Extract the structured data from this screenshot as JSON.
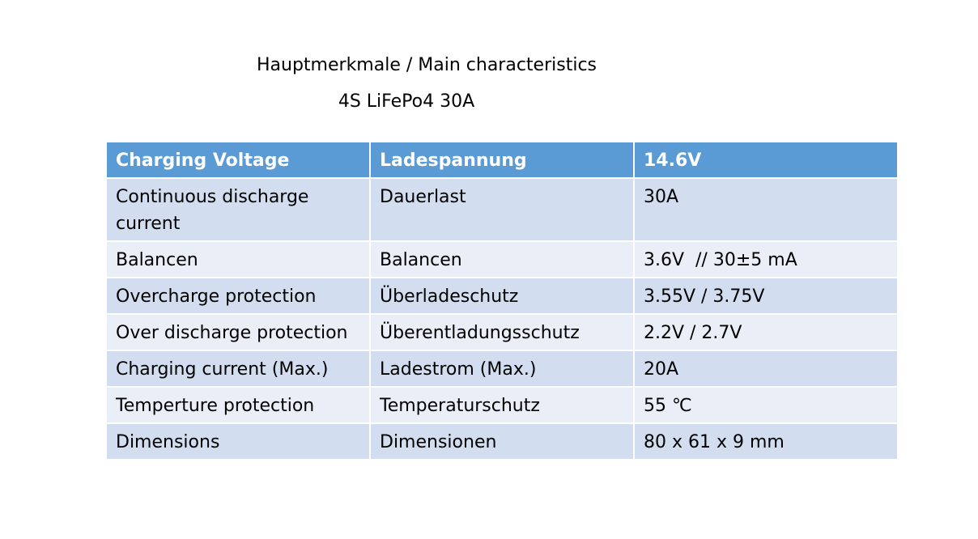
{
  "header": {
    "title": "Hauptmerkmale / Main characteristics",
    "subtitle": "4S LiFePo4 30A"
  },
  "table": {
    "header": [
      "Charging Voltage",
      "Ladespannung",
      "14.6V"
    ],
    "rows": [
      [
        "Continuous discharge current",
        "Dauerlast",
        "30A"
      ],
      [
        "Balancen",
        "Balancen",
        "3.6V  // 30±5 mA"
      ],
      [
        "Overcharge protection",
        "Überladeschutz",
        "3.55V / 3.75V"
      ],
      [
        "Over discharge protection",
        "Überentladungsschutz",
        "2.2V / 2.7V"
      ],
      [
        "Charging current (Max.)",
        "Ladestrom (Max.)",
        "20A"
      ],
      [
        "Temperture protection",
        "Temperaturschutz",
        "55 ℃"
      ],
      [
        "Dimensions",
        "Dimensionen",
        "80 x 61 x 9 mm"
      ]
    ]
  }
}
